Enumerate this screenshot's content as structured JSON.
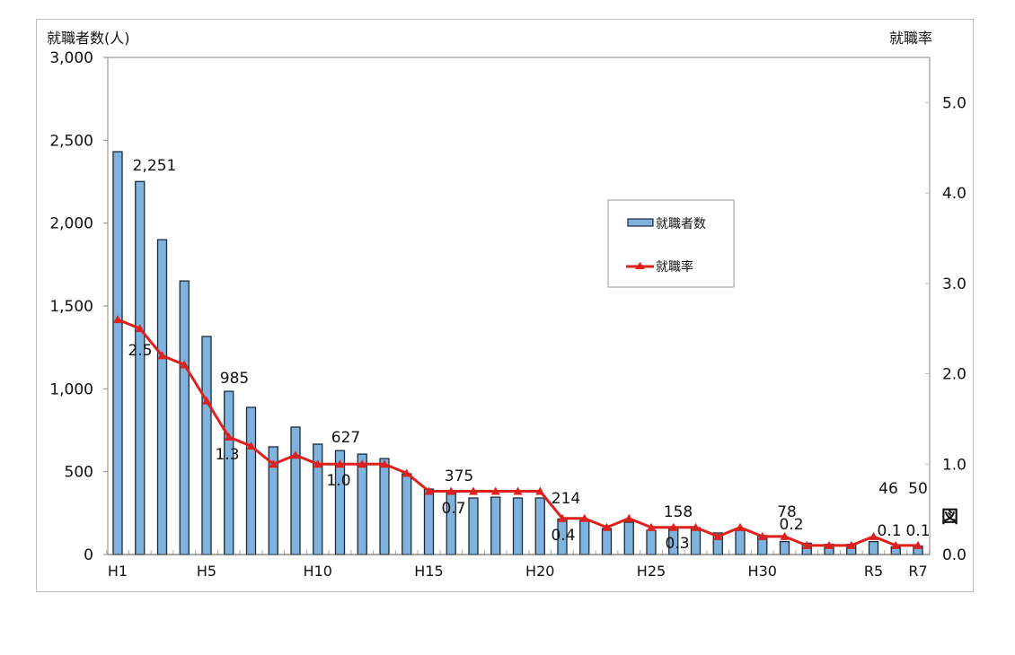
{
  "chart_data": {
    "type": "bar+line",
    "title": "",
    "left_axis": {
      "label": "就職者数(人)",
      "range": [
        0,
        3000
      ],
      "ticks": [
        "0",
        "500",
        "1,000",
        "1,500",
        "2,000",
        "2,500",
        "3,000"
      ]
    },
    "right_axis": {
      "label": "就職率",
      "range": [
        0,
        5.5
      ],
      "ticks": [
        "0.0",
        "1.0",
        "2.0",
        "3.0",
        "4.0",
        "5.0"
      ]
    },
    "categories": [
      "H1",
      "H2",
      "H3",
      "H4",
      "H5",
      "H6",
      "H7",
      "H8",
      "H9",
      "H10",
      "H11",
      "H12",
      "H13",
      "H14",
      "H15",
      "H16",
      "H17",
      "H18",
      "H19",
      "H20",
      "H21",
      "H22",
      "H23",
      "H24",
      "H25",
      "H26",
      "H27",
      "H28",
      "H29",
      "H30",
      "H31",
      "R2",
      "R3",
      "R4",
      "R5",
      "R6",
      "R7"
    ],
    "tick_labels_shown": {
      "0": "H1",
      "4": "H5",
      "9": "H10",
      "14": "H15",
      "19": "H20",
      "24": "H25",
      "29": "H30",
      "34": "R5",
      "36": "R7"
    },
    "series": [
      {
        "name": "就職者数",
        "type": "bar",
        "axis": "left",
        "color": "#7fb3dd",
        "values": [
          2431,
          2251,
          1900,
          1651,
          1316,
          985,
          888,
          650,
          769,
          666,
          627,
          606,
          579,
          487,
          395,
          375,
          341,
          346,
          341,
          341,
          214,
          206,
          157,
          195,
          146,
          158,
          162,
          130,
          146,
          114,
          78,
          68,
          61,
          61,
          78,
          46,
          50
        ]
      },
      {
        "name": "就職率",
        "type": "line",
        "axis": "right",
        "color": "#e0201c",
        "values": [
          2.6,
          2.5,
          2.2,
          2.1,
          1.7,
          1.3,
          1.2,
          1.0,
          1.1,
          1.0,
          1.0,
          1.0,
          1.0,
          0.9,
          0.7,
          0.7,
          0.7,
          0.7,
          0.7,
          0.7,
          0.4,
          0.4,
          0.3,
          0.4,
          0.3,
          0.3,
          0.3,
          0.2,
          0.3,
          0.2,
          0.2,
          0.1,
          0.1,
          0.1,
          0.2,
          0.1,
          0.1
        ]
      }
    ],
    "data_labels": {
      "bar": [
        {
          "index": 1,
          "text": "2,251"
        },
        {
          "index": 5,
          "text": "985"
        },
        {
          "index": 10,
          "text": "627"
        },
        {
          "index": 15,
          "text": "375"
        },
        {
          "index": 20,
          "text": "214"
        },
        {
          "index": 25,
          "text": "158"
        },
        {
          "index": 30,
          "text": "78"
        },
        {
          "index": 35,
          "text": "46"
        },
        {
          "index": 36,
          "text": "50"
        }
      ],
      "line": [
        {
          "index": 1,
          "text": "2.5"
        },
        {
          "index": 5,
          "text": "1.3"
        },
        {
          "index": 10,
          "text": "1.0"
        },
        {
          "index": 15,
          "text": "0.7"
        },
        {
          "index": 20,
          "text": "0.4"
        },
        {
          "index": 25,
          "text": "0.3"
        },
        {
          "index": 30,
          "text": "0.2"
        },
        {
          "index": 35,
          "text": "0.1"
        },
        {
          "index": 36,
          "text": "0.1"
        }
      ]
    },
    "legend": {
      "position": "inside-center-right",
      "entries": [
        "就職者数",
        "就職率"
      ]
    },
    "annotation": "図",
    "grid": false
  }
}
